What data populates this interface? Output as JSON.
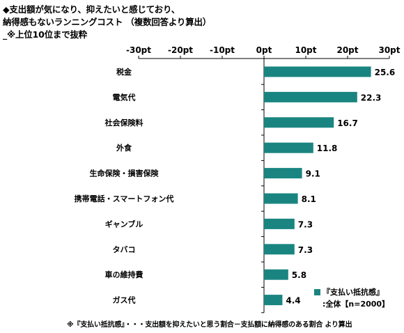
{
  "title": {
    "line1": "◆支出額が気になり、抑えたいと感じており、",
    "line2": "納得感もないランニングコスト （複数回答より算出）",
    "line3": "_※上位10位まで抜粋"
  },
  "legend": {
    "line1": "『支払い抵抗感』",
    "line2": ":全体【n=2000】"
  },
  "footnote": "※『支払い抵抗感』・・・支出額を抑えたいと思う割合－支払額に納得感のある割合 より算出",
  "colors": {
    "bar": "#1a8580",
    "axis": "#000000"
  },
  "chart_data": {
    "type": "bar",
    "orientation": "horizontal",
    "categories": [
      "税金",
      "電気代",
      "社会保険料",
      "外食",
      "生命保険・損害保険",
      "携帯電話・スマートフォン代",
      "ギャンブル",
      "タバコ",
      "車の維持費",
      "ガス代"
    ],
    "series": [
      {
        "name": "『支払い抵抗感』:全体【n=2000】",
        "values": [
          25.6,
          22.3,
          16.7,
          11.8,
          9.1,
          8.1,
          7.3,
          7.3,
          5.8,
          4.4
        ]
      }
    ],
    "value_labels": [
      "25.6",
      "22.3",
      "16.7",
      "11.8",
      "9.1",
      "8.1",
      "7.3",
      "7.3",
      "5.8",
      "4.4"
    ],
    "xlim": [
      -30,
      30
    ],
    "xticks": [
      -30,
      -20,
      -10,
      0,
      10,
      20,
      30
    ],
    "xtick_labels": [
      "-30pt",
      "-20pt",
      "-10pt",
      "0pt",
      "10pt",
      "20pt",
      "30pt"
    ],
    "axis_position": "top",
    "grid": false,
    "legend_position": "bottom-right"
  }
}
